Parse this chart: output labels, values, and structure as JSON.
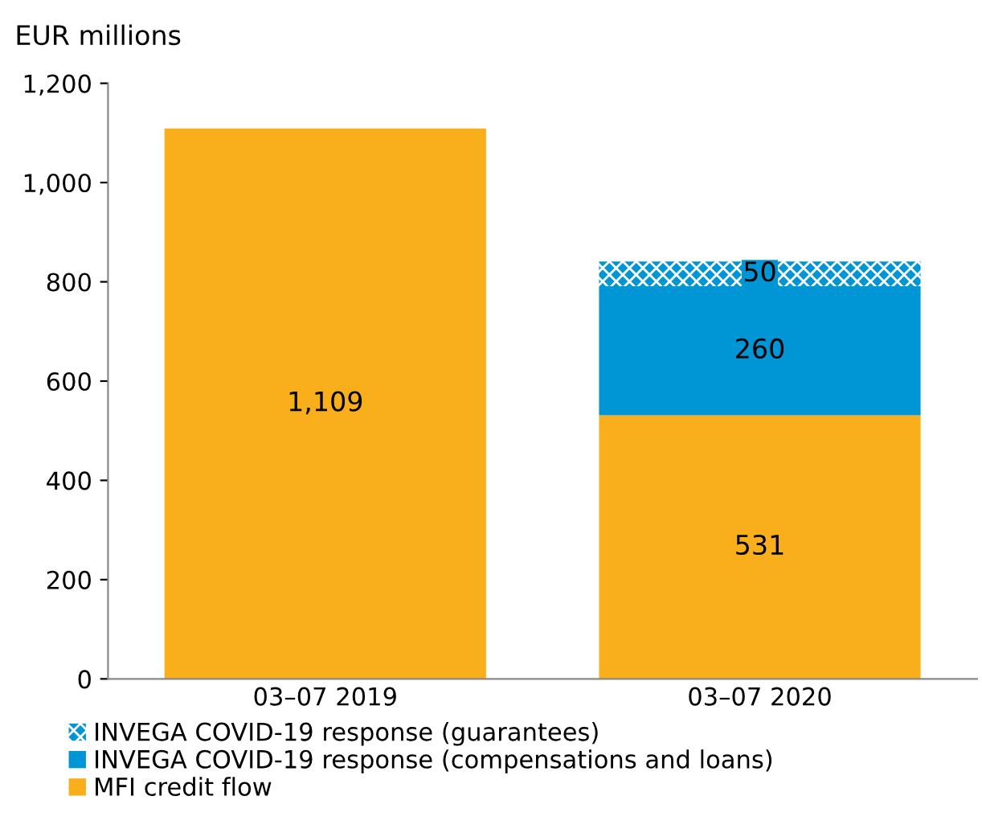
{
  "chart_data": {
    "type": "bar",
    "stacked": true,
    "ylabel": "EUR millions",
    "categories": [
      "03–07 2019",
      "03–07 2020"
    ],
    "series": [
      {
        "name": "MFI credit flow",
        "color": "#f9ae1b",
        "values": [
          1109,
          531
        ],
        "value_labels": [
          "1,109",
          "531"
        ]
      },
      {
        "name": "INVEGA COVID-19 response (compensations and loans)",
        "color": "#0096d6",
        "values": [
          null,
          260
        ],
        "value_labels": [
          null,
          "260"
        ]
      },
      {
        "name": "INVEGA COVID-19 response (guarantees)",
        "color": "#0096d6",
        "values": [
          null,
          50
        ],
        "value_labels": [
          null,
          "50"
        ]
      }
    ],
    "ylim": [
      0,
      1200
    ],
    "yticks": [
      0,
      200,
      400,
      600,
      800,
      {
        "value": 1000,
        "label": "1,000"
      },
      {
        "value": 1200,
        "label": "1,200"
      }
    ],
    "legend": "bottom",
    "grid": false
  }
}
